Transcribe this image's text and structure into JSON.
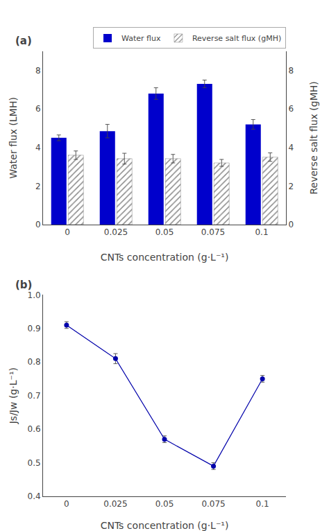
{
  "chart_data": [
    {
      "type": "bar",
      "title": "(a)",
      "categories": [
        "0",
        "0.025",
        "0.05",
        "0.075",
        "0.1"
      ],
      "xlabel": "CNTs concentration (g·L⁻¹)",
      "ylabel": "Water flux (LMH)",
      "y2label": "Reverse salt flux (gMH)",
      "series": [
        {
          "name": "Water flux",
          "color": "#0000CC",
          "values": [
            4.5,
            4.85,
            6.8,
            7.3,
            5.2
          ],
          "errors": [
            0.15,
            0.35,
            0.3,
            0.2,
            0.25
          ]
        },
        {
          "name": "Reverse salt flux (gMH)",
          "color": "#cccccc",
          "values": [
            3.6,
            3.42,
            3.42,
            3.2,
            3.5
          ],
          "errors": [
            0.22,
            0.28,
            0.22,
            0.18,
            0.22
          ]
        }
      ],
      "ylim": [
        0,
        9.0
      ],
      "yticks": [
        0,
        2,
        4,
        6,
        8
      ],
      "y2lim": [
        0,
        9.0
      ],
      "y2ticks": [
        0,
        2,
        4,
        6,
        8
      ],
      "legend": "upper right",
      "grid": false
    },
    {
      "type": "line",
      "title": "(b)",
      "x": [
        0,
        0.025,
        0.05,
        0.075,
        0.1
      ],
      "xlabel": "CNTs concentration (g·L⁻¹)",
      "ylabel": "Js/Jw (g·L⁻¹)",
      "series": [
        {
          "color": "#0000AA",
          "marker": "circle",
          "line_style": "solid",
          "values": [
            0.91,
            0.81,
            0.57,
            0.49,
            0.75
          ],
          "errors": [
            0.01,
            0.015,
            0.01,
            0.01,
            0.01
          ]
        }
      ],
      "xlim": [
        -0.012,
        0.112
      ],
      "xticks": [
        0,
        0.025,
        0.05,
        0.075,
        0.1
      ],
      "ylim": [
        0.4,
        1.0
      ],
      "yticks": [
        0.4,
        0.5,
        0.6,
        0.7,
        0.8,
        0.9,
        {
          "value": 1.0,
          "label": "1.0"
        }
      ],
      "grid": false
    }
  ]
}
